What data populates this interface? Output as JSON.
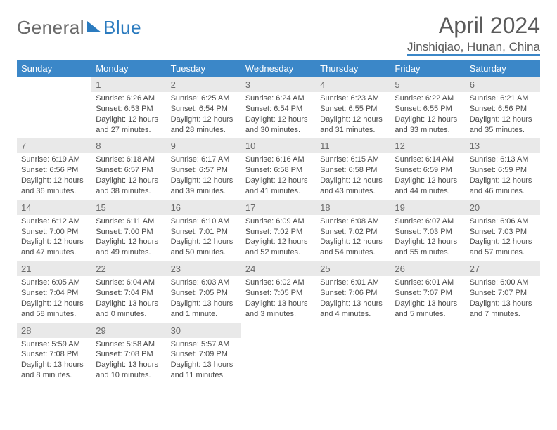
{
  "logo": {
    "text1": "General",
    "text2": "Blue"
  },
  "title": "April 2024",
  "subtitle": "Jinshiqiao, Hunan, China",
  "colors": {
    "header_bg": "#3b87c8",
    "header_text": "#ffffff",
    "daynum_bg": "#e9e9e9",
    "border": "#3b87c8",
    "body_text": "#4a4a4a",
    "title_text": "#5a5a5a",
    "logo_gray": "#6a6a6a",
    "logo_blue": "#2b7bbf"
  },
  "typography": {
    "title_fontsize": 32,
    "subtitle_fontsize": 17,
    "dayheader_fontsize": 13,
    "daynum_fontsize": 13,
    "body_fontsize": 11
  },
  "day_headers": [
    "Sunday",
    "Monday",
    "Tuesday",
    "Wednesday",
    "Thursday",
    "Friday",
    "Saturday"
  ],
  "weeks": [
    [
      null,
      {
        "n": "1",
        "sr": "Sunrise: 6:26 AM",
        "ss": "Sunset: 6:53 PM",
        "d1": "Daylight: 12 hours",
        "d2": "and 27 minutes."
      },
      {
        "n": "2",
        "sr": "Sunrise: 6:25 AM",
        "ss": "Sunset: 6:54 PM",
        "d1": "Daylight: 12 hours",
        "d2": "and 28 minutes."
      },
      {
        "n": "3",
        "sr": "Sunrise: 6:24 AM",
        "ss": "Sunset: 6:54 PM",
        "d1": "Daylight: 12 hours",
        "d2": "and 30 minutes."
      },
      {
        "n": "4",
        "sr": "Sunrise: 6:23 AM",
        "ss": "Sunset: 6:55 PM",
        "d1": "Daylight: 12 hours",
        "d2": "and 31 minutes."
      },
      {
        "n": "5",
        "sr": "Sunrise: 6:22 AM",
        "ss": "Sunset: 6:55 PM",
        "d1": "Daylight: 12 hours",
        "d2": "and 33 minutes."
      },
      {
        "n": "6",
        "sr": "Sunrise: 6:21 AM",
        "ss": "Sunset: 6:56 PM",
        "d1": "Daylight: 12 hours",
        "d2": "and 35 minutes."
      }
    ],
    [
      {
        "n": "7",
        "sr": "Sunrise: 6:19 AM",
        "ss": "Sunset: 6:56 PM",
        "d1": "Daylight: 12 hours",
        "d2": "and 36 minutes."
      },
      {
        "n": "8",
        "sr": "Sunrise: 6:18 AM",
        "ss": "Sunset: 6:57 PM",
        "d1": "Daylight: 12 hours",
        "d2": "and 38 minutes."
      },
      {
        "n": "9",
        "sr": "Sunrise: 6:17 AM",
        "ss": "Sunset: 6:57 PM",
        "d1": "Daylight: 12 hours",
        "d2": "and 39 minutes."
      },
      {
        "n": "10",
        "sr": "Sunrise: 6:16 AM",
        "ss": "Sunset: 6:58 PM",
        "d1": "Daylight: 12 hours",
        "d2": "and 41 minutes."
      },
      {
        "n": "11",
        "sr": "Sunrise: 6:15 AM",
        "ss": "Sunset: 6:58 PM",
        "d1": "Daylight: 12 hours",
        "d2": "and 43 minutes."
      },
      {
        "n": "12",
        "sr": "Sunrise: 6:14 AM",
        "ss": "Sunset: 6:59 PM",
        "d1": "Daylight: 12 hours",
        "d2": "and 44 minutes."
      },
      {
        "n": "13",
        "sr": "Sunrise: 6:13 AM",
        "ss": "Sunset: 6:59 PM",
        "d1": "Daylight: 12 hours",
        "d2": "and 46 minutes."
      }
    ],
    [
      {
        "n": "14",
        "sr": "Sunrise: 6:12 AM",
        "ss": "Sunset: 7:00 PM",
        "d1": "Daylight: 12 hours",
        "d2": "and 47 minutes."
      },
      {
        "n": "15",
        "sr": "Sunrise: 6:11 AM",
        "ss": "Sunset: 7:00 PM",
        "d1": "Daylight: 12 hours",
        "d2": "and 49 minutes."
      },
      {
        "n": "16",
        "sr": "Sunrise: 6:10 AM",
        "ss": "Sunset: 7:01 PM",
        "d1": "Daylight: 12 hours",
        "d2": "and 50 minutes."
      },
      {
        "n": "17",
        "sr": "Sunrise: 6:09 AM",
        "ss": "Sunset: 7:02 PM",
        "d1": "Daylight: 12 hours",
        "d2": "and 52 minutes."
      },
      {
        "n": "18",
        "sr": "Sunrise: 6:08 AM",
        "ss": "Sunset: 7:02 PM",
        "d1": "Daylight: 12 hours",
        "d2": "and 54 minutes."
      },
      {
        "n": "19",
        "sr": "Sunrise: 6:07 AM",
        "ss": "Sunset: 7:03 PM",
        "d1": "Daylight: 12 hours",
        "d2": "and 55 minutes."
      },
      {
        "n": "20",
        "sr": "Sunrise: 6:06 AM",
        "ss": "Sunset: 7:03 PM",
        "d1": "Daylight: 12 hours",
        "d2": "and 57 minutes."
      }
    ],
    [
      {
        "n": "21",
        "sr": "Sunrise: 6:05 AM",
        "ss": "Sunset: 7:04 PM",
        "d1": "Daylight: 12 hours",
        "d2": "and 58 minutes."
      },
      {
        "n": "22",
        "sr": "Sunrise: 6:04 AM",
        "ss": "Sunset: 7:04 PM",
        "d1": "Daylight: 13 hours",
        "d2": "and 0 minutes."
      },
      {
        "n": "23",
        "sr": "Sunrise: 6:03 AM",
        "ss": "Sunset: 7:05 PM",
        "d1": "Daylight: 13 hours",
        "d2": "and 1 minute."
      },
      {
        "n": "24",
        "sr": "Sunrise: 6:02 AM",
        "ss": "Sunset: 7:05 PM",
        "d1": "Daylight: 13 hours",
        "d2": "and 3 minutes."
      },
      {
        "n": "25",
        "sr": "Sunrise: 6:01 AM",
        "ss": "Sunset: 7:06 PM",
        "d1": "Daylight: 13 hours",
        "d2": "and 4 minutes."
      },
      {
        "n": "26",
        "sr": "Sunrise: 6:01 AM",
        "ss": "Sunset: 7:07 PM",
        "d1": "Daylight: 13 hours",
        "d2": "and 5 minutes."
      },
      {
        "n": "27",
        "sr": "Sunrise: 6:00 AM",
        "ss": "Sunset: 7:07 PM",
        "d1": "Daylight: 13 hours",
        "d2": "and 7 minutes."
      }
    ],
    [
      {
        "n": "28",
        "sr": "Sunrise: 5:59 AM",
        "ss": "Sunset: 7:08 PM",
        "d1": "Daylight: 13 hours",
        "d2": "and 8 minutes."
      },
      {
        "n": "29",
        "sr": "Sunrise: 5:58 AM",
        "ss": "Sunset: 7:08 PM",
        "d1": "Daylight: 13 hours",
        "d2": "and 10 minutes."
      },
      {
        "n": "30",
        "sr": "Sunrise: 5:57 AM",
        "ss": "Sunset: 7:09 PM",
        "d1": "Daylight: 13 hours",
        "d2": "and 11 minutes."
      },
      null,
      null,
      null,
      null
    ]
  ]
}
